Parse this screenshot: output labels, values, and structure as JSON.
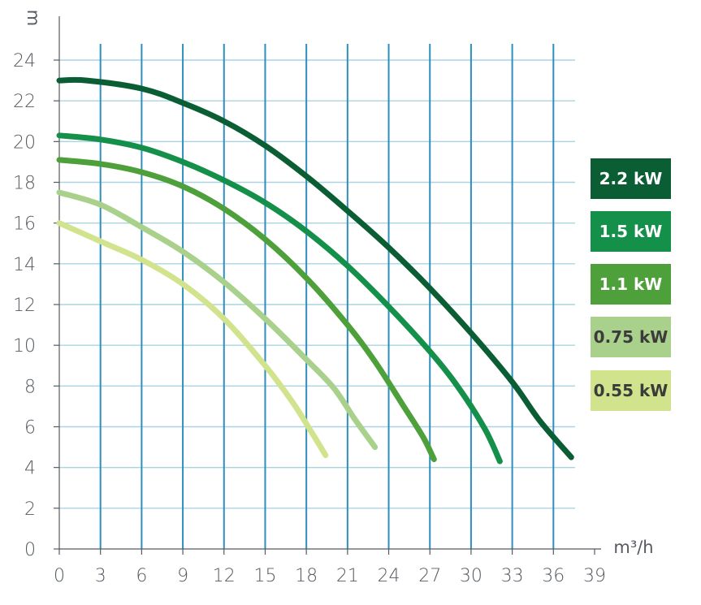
{
  "chart_data": {
    "type": "line",
    "ylabel": "m",
    "xlabel": "m³/h",
    "xlim": [
      0,
      39
    ],
    "ylim": [
      0,
      24
    ],
    "x_ticks": [
      "0",
      "3",
      "6",
      "9",
      "12",
      "15",
      "18",
      "21",
      "24",
      "27",
      "30",
      "33",
      "36",
      "39"
    ],
    "y_ticks": [
      "0",
      "2",
      "4",
      "6",
      "8",
      "10",
      "12",
      "14",
      "16",
      "18",
      "20",
      "22",
      "24"
    ],
    "grid": true,
    "legend_position": "right",
    "series": [
      {
        "name": "2.2 kW",
        "color": "#0b5e34",
        "text_color": "#ffffff",
        "points": [
          [
            0,
            23.0
          ],
          [
            2,
            23.0
          ],
          [
            6,
            22.6
          ],
          [
            9,
            21.9
          ],
          [
            12,
            21.0
          ],
          [
            15,
            19.8
          ],
          [
            18,
            18.3
          ],
          [
            21,
            16.6
          ],
          [
            24,
            14.8
          ],
          [
            27,
            12.8
          ],
          [
            30,
            10.6
          ],
          [
            33,
            8.2
          ],
          [
            35,
            6.3
          ],
          [
            37.3,
            4.5
          ]
        ]
      },
      {
        "name": "1.5 kW",
        "color": "#15904a",
        "text_color": "#ffffff",
        "points": [
          [
            0,
            20.3
          ],
          [
            3,
            20.1
          ],
          [
            6,
            19.7
          ],
          [
            9,
            19.0
          ],
          [
            12,
            18.1
          ],
          [
            15,
            17.0
          ],
          [
            18,
            15.6
          ],
          [
            21,
            13.9
          ],
          [
            24,
            11.9
          ],
          [
            27,
            9.7
          ],
          [
            29,
            8.0
          ],
          [
            31,
            5.9
          ],
          [
            32.1,
            4.3
          ]
        ]
      },
      {
        "name": "1.1 kW",
        "color": "#4da03a",
        "text_color": "#ffffff",
        "points": [
          [
            0,
            19.1
          ],
          [
            3,
            18.9
          ],
          [
            6,
            18.5
          ],
          [
            9,
            17.8
          ],
          [
            12,
            16.7
          ],
          [
            15,
            15.2
          ],
          [
            18,
            13.3
          ],
          [
            21,
            11.0
          ],
          [
            23,
            9.2
          ],
          [
            25,
            7.1
          ],
          [
            26.5,
            5.5
          ],
          [
            27.3,
            4.4
          ]
        ]
      },
      {
        "name": "0.75 kW",
        "color": "#a9d18c",
        "text_color": "#3b3b3b",
        "points": [
          [
            0,
            17.5
          ],
          [
            3,
            16.9
          ],
          [
            6,
            15.8
          ],
          [
            9,
            14.6
          ],
          [
            12,
            13.1
          ],
          [
            15,
            11.3
          ],
          [
            18,
            9.3
          ],
          [
            20,
            7.9
          ],
          [
            21.5,
            6.4
          ],
          [
            23,
            5.0
          ]
        ]
      },
      {
        "name": "0.55 kW",
        "color": "#d2e38e",
        "text_color": "#3b3b3b",
        "points": [
          [
            0,
            16.0
          ],
          [
            3,
            15.1
          ],
          [
            6,
            14.2
          ],
          [
            9,
            13.0
          ],
          [
            12,
            11.3
          ],
          [
            15,
            9.0
          ],
          [
            17,
            7.2
          ],
          [
            18.5,
            5.6
          ],
          [
            19.4,
            4.6
          ]
        ]
      }
    ]
  }
}
